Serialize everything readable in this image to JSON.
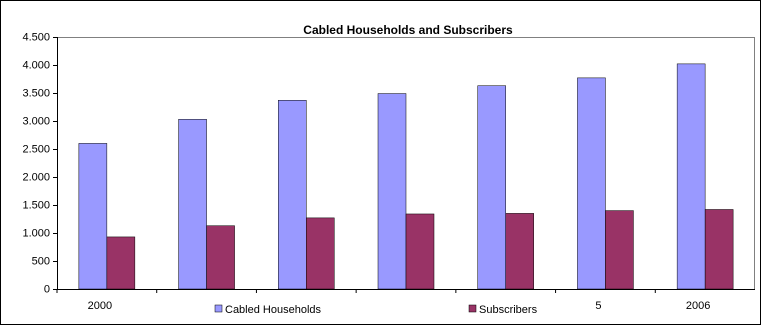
{
  "chart_data": {
    "type": "bar",
    "title": "Cabled Households and Subscribers",
    "categories": [
      "2000",
      null,
      null,
      null,
      null,
      "5",
      "2006"
    ],
    "series": [
      {
        "name": "Cabled Households",
        "color": "#9999ff",
        "values": [
          2600,
          3030,
          3370,
          3490,
          3630,
          3770,
          4020
        ]
      },
      {
        "name": "Subscribers",
        "color": "#993366",
        "values": [
          930,
          1130,
          1270,
          1340,
          1350,
          1400,
          1420
        ]
      }
    ],
    "ylim": [
      0,
      4500
    ],
    "yticks": [
      0,
      500,
      {
        "value": 1000,
        "label": "1.000"
      },
      {
        "value": 1500,
        "label": "1.500"
      },
      {
        "value": 2000,
        "label": "2.000"
      },
      {
        "value": 2500,
        "label": "2.500"
      },
      {
        "value": 3000,
        "label": "3.000"
      },
      {
        "value": 3500,
        "label": "3.500"
      },
      {
        "value": 4000,
        "label": "4.000"
      },
      {
        "value": 4500,
        "label": "4.500"
      }
    ],
    "grid": false,
    "legend": "bottom"
  }
}
